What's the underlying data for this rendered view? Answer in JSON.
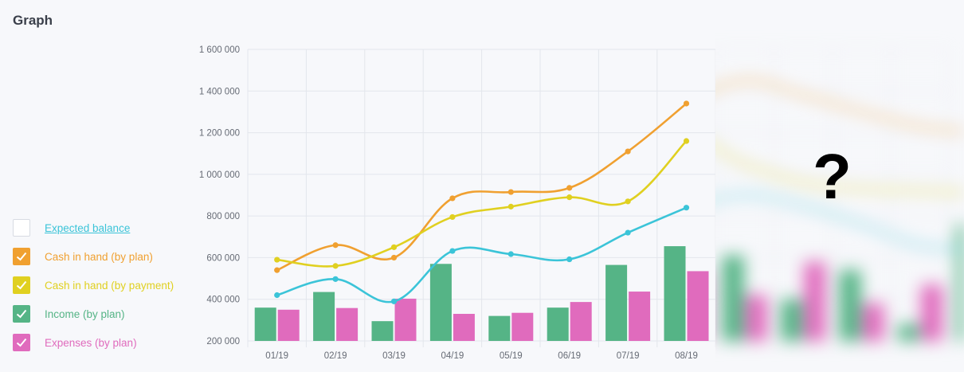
{
  "header": {
    "title": "Graph"
  },
  "legend": {
    "items": [
      {
        "label": "Expected balance",
        "color": "#3bc4d8",
        "checked": false
      },
      {
        "label": "Cash in hand (by plan)",
        "color": "#f0a030",
        "checked": true
      },
      {
        "label": "Cash in hand (by payment)",
        "color": "#e0d020",
        "checked": true
      },
      {
        "label": "Income (by plan)",
        "color": "#55b486",
        "checked": true
      },
      {
        "label": "Expenses (by plan)",
        "color": "#e06bbd",
        "checked": true
      }
    ]
  },
  "overlay": {
    "hidden_marker": "?"
  },
  "chart_data": {
    "type": "bar+line",
    "title": "",
    "xlabel": "",
    "ylabel": "",
    "categories": [
      "01/19",
      "02/19",
      "03/19",
      "04/19",
      "05/19",
      "06/19",
      "07/19",
      "08/19"
    ],
    "ylim": [
      200000,
      1600000
    ],
    "yticks": [
      200000,
      400000,
      600000,
      800000,
      1000000,
      1200000,
      1400000,
      1600000
    ],
    "ytick_labels": [
      "200 000",
      "400 000",
      "600 000",
      "800 000",
      "1 000 000",
      "1 200 000",
      "1 400 000",
      "1 600 000"
    ],
    "grid": true,
    "bar_series": [
      {
        "name": "Income (by plan)",
        "color": "#55b486",
        "values": [
          360000,
          435000,
          295000,
          570000,
          320000,
          360000,
          565000,
          655000
        ]
      },
      {
        "name": "Expenses (by plan)",
        "color": "#e06bbd",
        "values": [
          350000,
          358000,
          403000,
          330000,
          335000,
          387000,
          437000,
          535000
        ]
      }
    ],
    "line_series": [
      {
        "name": "Cash in hand (by plan)",
        "color": "#f0a030",
        "values": [
          540000,
          660000,
          600000,
          885000,
          915000,
          935000,
          1110000,
          1340000
        ]
      },
      {
        "name": "Cash in hand (by payment)",
        "color": "#e0d020",
        "values": [
          590000,
          560000,
          650000,
          795000,
          845000,
          890000,
          870000,
          1160000
        ]
      },
      {
        "name": "Expected balance",
        "color": "#3bc4d8",
        "values": [
          420000,
          497000,
          390000,
          632000,
          617000,
          592000,
          720000,
          840000
        ]
      }
    ]
  }
}
